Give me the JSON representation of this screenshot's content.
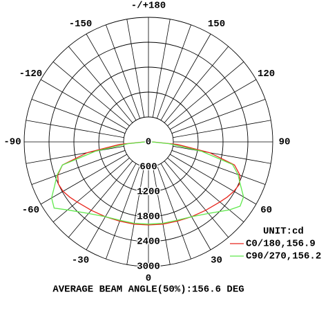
{
  "chart_data": {
    "type": "polar",
    "footer": "AVERAGE BEAM ANGLE(50%):156.6 DEG",
    "unit_label": "UNIT:cd",
    "rlim": [
      0,
      3000
    ],
    "rticks": [
      0,
      600,
      1200,
      1800,
      2400,
      3000
    ],
    "angle_ticks": [
      {
        "value": 180,
        "label": "-/+180"
      },
      -150,
      -120,
      -90,
      -60,
      -30,
      0,
      30,
      60,
      90,
      120,
      150
    ],
    "x": [
      -90,
      -85,
      -80,
      -75,
      -70,
      -65,
      -60,
      -55,
      -50,
      -40,
      -30,
      -20,
      -10,
      0,
      10,
      20,
      30,
      40,
      50,
      55,
      60,
      65,
      70,
      75,
      80,
      85,
      90
    ],
    "series": [
      {
        "name": "C0/180,156.9",
        "color": "#e8251c",
        "values": [
          100,
          700,
          1500,
          2150,
          2330,
          2400,
          2380,
          2320,
          2250,
          2150,
          2080,
          2030,
          2010,
          2000,
          2010,
          2030,
          2080,
          2150,
          2250,
          2320,
          2380,
          2420,
          2350,
          2150,
          1500,
          700,
          100
        ]
      },
      {
        "name": "C90/270,156.2",
        "color": "#5ee84a",
        "values": [
          80,
          500,
          1300,
          2150,
          2350,
          2500,
          2700,
          2780,
          2550,
          2250,
          2080,
          2010,
          1990,
          1980,
          1990,
          2010,
          2080,
          2250,
          2550,
          2700,
          2650,
          2450,
          2300,
          2100,
          1300,
          500,
          80
        ]
      }
    ]
  }
}
